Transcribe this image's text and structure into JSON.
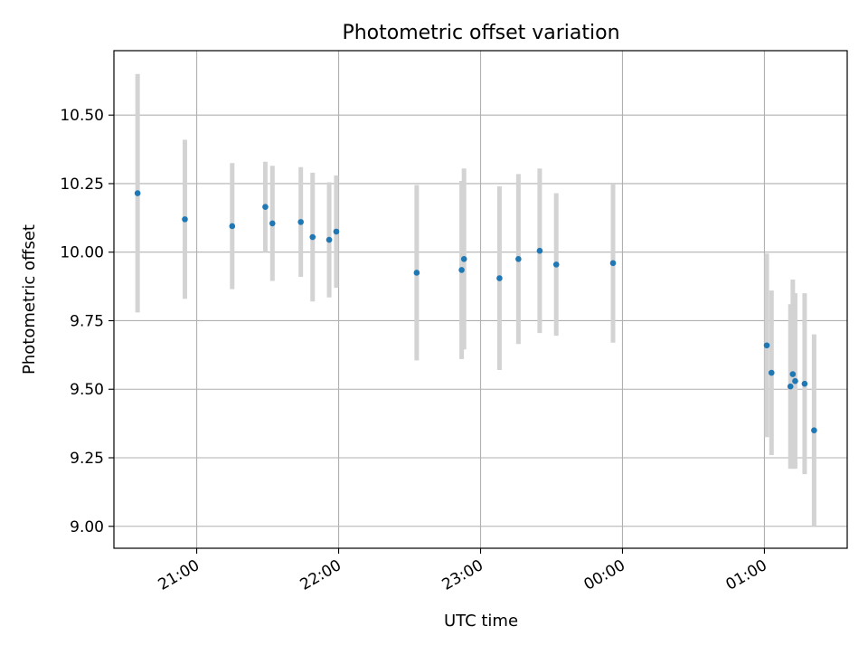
{
  "chart_data": {
    "type": "scatter",
    "title": "Photometric offset variation",
    "xlabel": "UTC time",
    "ylabel": "Photometric offset",
    "x_tick_labels": [
      "21:00",
      "22:00",
      "23:00",
      "00:00",
      "01:00"
    ],
    "x_tick_times": [
      "21:00",
      "22:00",
      "23:00",
      "00:00",
      "01:00"
    ],
    "y_ticks": [
      9.0,
      9.25,
      9.5,
      9.75,
      10.0,
      10.25,
      10.5
    ],
    "y_tick_labels": [
      "9.00",
      "9.25",
      "9.50",
      "9.75",
      "10.00",
      "10.25",
      "10.50"
    ],
    "xlim": [
      "20:25",
      "01:35"
    ],
    "ylim": [
      8.92,
      10.735
    ],
    "grid": true,
    "colors": {
      "point": "#1f77b4",
      "errorbar": "#d3d3d3",
      "grid": "#b0b0b0"
    },
    "points": [
      {
        "time": "20:35",
        "y": 10.215,
        "err": 0.435
      },
      {
        "time": "20:55",
        "y": 10.12,
        "err": 0.29
      },
      {
        "time": "21:15",
        "y": 10.095,
        "err": 0.23
      },
      {
        "time": "21:29",
        "y": 10.165,
        "err": 0.165
      },
      {
        "time": "21:32",
        "y": 10.105,
        "err": 0.21
      },
      {
        "time": "21:44",
        "y": 10.11,
        "err": 0.2
      },
      {
        "time": "21:49",
        "y": 10.055,
        "err": 0.235
      },
      {
        "time": "21:56",
        "y": 10.045,
        "err": 0.21
      },
      {
        "time": "21:59",
        "y": 10.075,
        "err": 0.205
      },
      {
        "time": "22:33",
        "y": 9.925,
        "err": 0.32
      },
      {
        "time": "22:52",
        "y": 9.935,
        "err": 0.325
      },
      {
        "time": "22:53",
        "y": 9.975,
        "err": 0.33
      },
      {
        "time": "23:08",
        "y": 9.905,
        "err": 0.335
      },
      {
        "time": "23:16",
        "y": 9.975,
        "err": 0.31
      },
      {
        "time": "23:25",
        "y": 10.005,
        "err": 0.3
      },
      {
        "time": "23:32",
        "y": 9.955,
        "err": 0.26
      },
      {
        "time": "23:56",
        "y": 9.96,
        "err": 0.29
      },
      {
        "time": "01:01",
        "y": 9.66,
        "err": 0.335
      },
      {
        "time": "01:03",
        "y": 9.56,
        "err": 0.3
      },
      {
        "time": "01:11",
        "y": 9.51,
        "err": 0.3
      },
      {
        "time": "01:12",
        "y": 9.555,
        "err": 0.345
      },
      {
        "time": "01:13",
        "y": 9.53,
        "err": 0.32
      },
      {
        "time": "01:17",
        "y": 9.52,
        "err": 0.33
      },
      {
        "time": "01:21",
        "y": 9.35,
        "err": 0.35
      }
    ]
  }
}
